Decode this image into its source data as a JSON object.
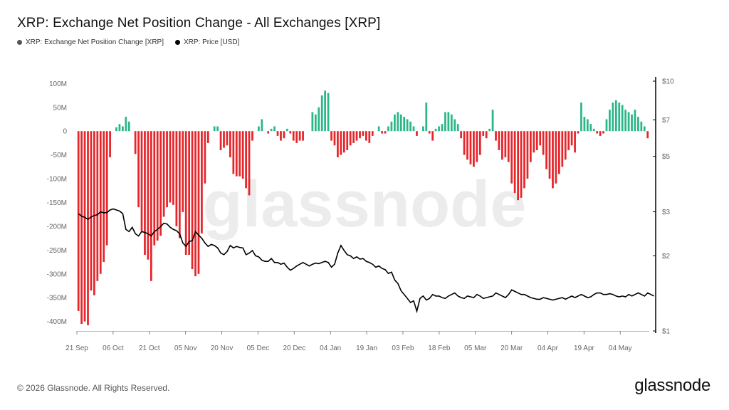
{
  "title": "XRP: Exchange Net Position Change - All Exchanges [XRP]",
  "legend": [
    {
      "label": "XRP: Exchange Net Position Change [XRP]",
      "color": "#555555"
    },
    {
      "label": "XRP: Price [USD]",
      "color": "#000000"
    }
  ],
  "watermark": "glassnode",
  "footer": "© 2026 Glassnode. All Rights Reserved.",
  "brand": "glassnode",
  "colors": {
    "positive": "#2bb689",
    "negative": "#e5262b",
    "price": "#000000"
  },
  "chart_data": {
    "type": "bar",
    "x_start": "2025-09-21",
    "x_end": "2026-05-16",
    "x_ticks": [
      "21 Sep",
      "06 Oct",
      "21 Oct",
      "05 Nov",
      "20 Nov",
      "05 Dec",
      "20 Dec",
      "04 Jan",
      "19 Jan",
      "03 Feb",
      "18 Feb",
      "05 Mar",
      "20 Mar",
      "04 Apr",
      "19 Apr",
      "04 May"
    ],
    "y_ticks": [
      "100M",
      "50M",
      "0",
      "-50M",
      "-100M",
      "-150M",
      "-200M",
      "-250M",
      "-300M",
      "-350M",
      "-400M"
    ],
    "ylim": [
      -420000000,
      105000000
    ],
    "y2_scale": "log",
    "y2_ticks": [
      "$10",
      "$7",
      "$5",
      "$3",
      "$2",
      "$1"
    ],
    "y2lim": [
      1,
      10
    ],
    "series": [
      {
        "name": "XRP: Exchange Net Position Change [XRP]",
        "unit": "M",
        "values": [
          -378,
          -405,
          -400,
          -408,
          -335,
          -345,
          -315,
          -300,
          -275,
          -240,
          -55,
          0,
          8,
          15,
          10,
          30,
          20,
          0,
          -48,
          -160,
          -210,
          -260,
          -270,
          -315,
          -240,
          -230,
          -220,
          -180,
          -160,
          -150,
          -155,
          -200,
          -225,
          -170,
          -260,
          -260,
          -290,
          -305,
          -300,
          -215,
          -110,
          -25,
          0,
          10,
          10,
          -40,
          -35,
          -30,
          -55,
          -90,
          -95,
          -95,
          -100,
          -120,
          -135,
          -20,
          0,
          10,
          25,
          0,
          -5,
          5,
          10,
          -10,
          -20,
          -15,
          5,
          -5,
          -20,
          -25,
          -20,
          -20,
          0,
          0,
          40,
          35,
          50,
          75,
          85,
          80,
          -20,
          -30,
          -55,
          -50,
          -45,
          -40,
          -30,
          -25,
          -20,
          -15,
          -10,
          -20,
          -25,
          -10,
          0,
          10,
          -5,
          -5,
          10,
          20,
          35,
          40,
          35,
          30,
          25,
          20,
          10,
          -10,
          0,
          10,
          60,
          -5,
          -20,
          5,
          10,
          15,
          40,
          40,
          35,
          25,
          15,
          -15,
          -50,
          -60,
          -70,
          -75,
          -65,
          -50,
          -10,
          -15,
          5,
          45,
          -20,
          -40,
          -60,
          -55,
          -65,
          -110,
          -130,
          -145,
          -140,
          -120,
          -100,
          -65,
          -45,
          -40,
          -30,
          -50,
          -80,
          -100,
          -120,
          -110,
          -90,
          -75,
          -60,
          -40,
          -30,
          -45,
          -5,
          60,
          30,
          25,
          15,
          5,
          -5,
          -10,
          -5,
          25,
          45,
          60,
          65,
          60,
          55,
          45,
          40,
          35,
          45,
          30,
          20,
          10,
          -15
        ]
      },
      {
        "name": "XRP: Price [USD]",
        "unit": "USD",
        "values": [
          2.95,
          2.88,
          2.85,
          2.8,
          2.86,
          2.9,
          2.92,
          3.0,
          2.97,
          2.98,
          3.05,
          3.08,
          3.05,
          3.02,
          2.95,
          2.55,
          2.5,
          2.6,
          2.45,
          2.4,
          2.5,
          2.48,
          2.45,
          2.4,
          2.5,
          2.55,
          2.62,
          2.7,
          2.68,
          2.6,
          2.55,
          2.52,
          2.45,
          2.25,
          2.18,
          2.28,
          2.3,
          2.5,
          2.42,
          2.35,
          2.25,
          2.18,
          2.22,
          2.2,
          2.15,
          2.05,
          2.02,
          2.08,
          2.2,
          2.15,
          2.18,
          2.16,
          2.15,
          2.02,
          2.05,
          2.1,
          2.0,
          1.98,
          1.92,
          1.9,
          1.9,
          1.95,
          1.88,
          1.88,
          1.85,
          1.87,
          1.8,
          1.75,
          1.78,
          1.82,
          1.85,
          1.88,
          1.85,
          1.82,
          1.85,
          1.87,
          1.86,
          1.88,
          1.9,
          1.88,
          1.8,
          1.85,
          2.05,
          2.2,
          2.1,
          2.02,
          2.0,
          1.95,
          1.98,
          1.94,
          1.95,
          1.9,
          1.88,
          1.85,
          1.8,
          1.82,
          1.78,
          1.76,
          1.7,
          1.72,
          1.6,
          1.55,
          1.45,
          1.4,
          1.35,
          1.3,
          1.32,
          1.2,
          1.35,
          1.38,
          1.33,
          1.35,
          1.4,
          1.38,
          1.38,
          1.36,
          1.35,
          1.38,
          1.4,
          1.42,
          1.38,
          1.36,
          1.35,
          1.38,
          1.37,
          1.36,
          1.4,
          1.38,
          1.35,
          1.36,
          1.37,
          1.38,
          1.42,
          1.4,
          1.38,
          1.36,
          1.4,
          1.46,
          1.44,
          1.42,
          1.4,
          1.4,
          1.38,
          1.36,
          1.35,
          1.34,
          1.34,
          1.36,
          1.35,
          1.34,
          1.33,
          1.34,
          1.35,
          1.36,
          1.34,
          1.36,
          1.38,
          1.36,
          1.38,
          1.4,
          1.38,
          1.36,
          1.37,
          1.4,
          1.42,
          1.42,
          1.4,
          1.4,
          1.41,
          1.4,
          1.38,
          1.37,
          1.38,
          1.37,
          1.4,
          1.38,
          1.4,
          1.42,
          1.4,
          1.38,
          1.42,
          1.4,
          1.38
        ]
      }
    ]
  }
}
